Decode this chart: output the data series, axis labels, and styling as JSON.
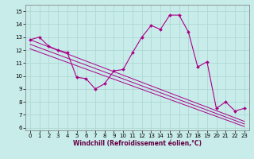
{
  "xlabel": "Windchill (Refroidissement éolien,°C)",
  "xlim": [
    -0.5,
    23.5
  ],
  "ylim": [
    5.8,
    15.5
  ],
  "yticks": [
    6,
    7,
    8,
    9,
    10,
    11,
    12,
    13,
    14,
    15
  ],
  "xticks": [
    0,
    1,
    2,
    3,
    4,
    5,
    6,
    7,
    8,
    9,
    10,
    11,
    12,
    13,
    14,
    15,
    16,
    17,
    18,
    19,
    20,
    21,
    22,
    23
  ],
  "bg_color": "#c8ecea",
  "grid_color": "#b0d8d4",
  "line_color": "#aa0088",
  "line1_x": [
    0,
    1,
    2,
    3,
    4,
    5,
    6,
    7,
    8,
    9,
    10,
    11,
    12,
    13,
    14,
    15,
    16,
    17,
    18,
    19,
    20,
    21,
    22,
    23
  ],
  "line1_y": [
    12.8,
    13.0,
    12.3,
    12.0,
    11.8,
    9.9,
    9.8,
    9.0,
    9.4,
    10.4,
    10.5,
    11.8,
    13.0,
    13.9,
    13.6,
    14.7,
    14.7,
    13.4,
    10.7,
    11.1,
    7.5,
    8.0,
    7.3,
    7.5
  ],
  "line2_x": [
    0,
    23
  ],
  "line2_y": [
    12.8,
    6.5
  ],
  "line3_x": [
    0,
    23
  ],
  "line3_y": [
    12.1,
    6.1
  ],
  "line4_x": [
    0,
    23
  ],
  "line4_y": [
    12.45,
    6.3
  ],
  "tick_fontsize": 5,
  "xlabel_fontsize": 5.5,
  "xlabel_color": "#660044"
}
